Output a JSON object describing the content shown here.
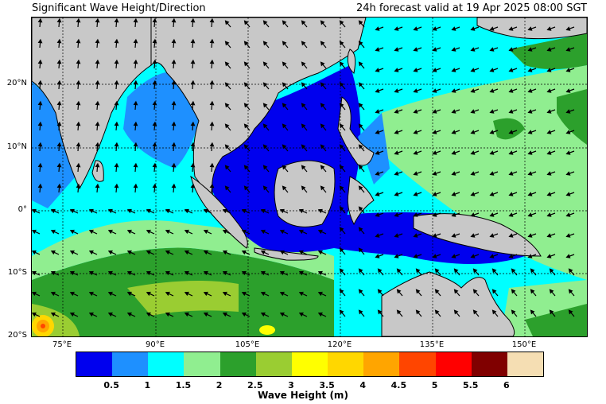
{
  "header": {
    "title": "Significant Wave Height/Direction",
    "valid": "24h forecast valid at 19 Apr 2025 08:00 SGT"
  },
  "map": {
    "lat_labels": [
      "20°N",
      "10°N",
      "0°",
      "10°S",
      "20°S"
    ],
    "lon_labels": [
      "75°E",
      "90°E",
      "105°E",
      "120°E",
      "135°E",
      "150°E"
    ],
    "land_color": "#c8c8c8"
  },
  "colorbar": {
    "label": "Wave Height (m)",
    "ticks": [
      "0.5",
      "1",
      "1.5",
      "2",
      "2.5",
      "3",
      "3.5",
      "4",
      "4.5",
      "5",
      "5.5",
      "6"
    ],
    "colors": [
      "#0000ee",
      "#1e90ff",
      "#00ffff",
      "#90ee90",
      "#2ca02c",
      "#9acd32",
      "#ffff00",
      "#ffd700",
      "#ffa500",
      "#ff4500",
      "#ff0000",
      "#800000",
      "#f5deb3"
    ]
  }
}
